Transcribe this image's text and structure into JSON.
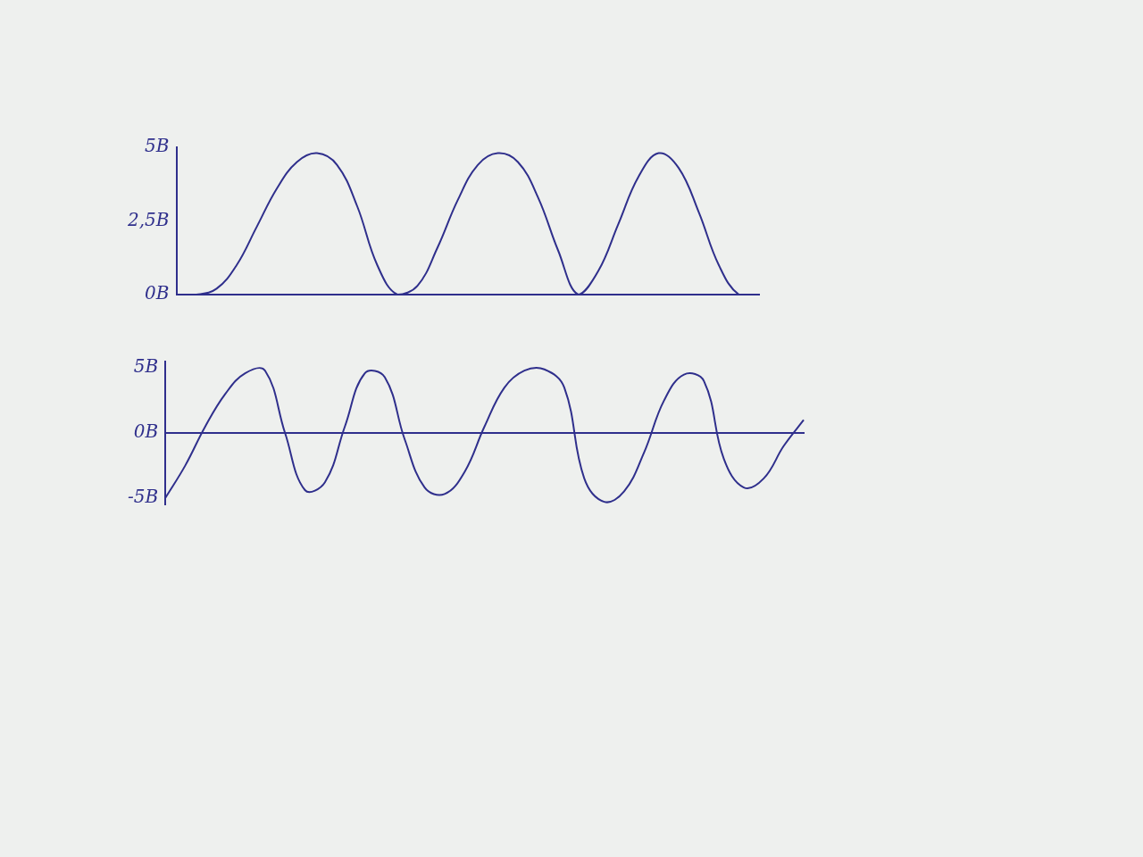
{
  "chart_data": [
    {
      "type": "line",
      "color": "#2f2f8c",
      "grid": false,
      "tick_labels": "y",
      "categories": [
        null,
        null,
        null,
        null,
        null,
        null,
        null,
        null,
        null,
        null,
        null,
        null,
        null,
        null,
        null,
        null,
        null,
        null,
        null,
        null,
        null,
        null,
        null,
        null,
        null,
        null,
        null,
        null,
        null,
        null
      ],
      "values": [
        0,
        0,
        0.2,
        1.0,
        2.3,
        3.6,
        4.5,
        4.8,
        4.4,
        3.0,
        1.0,
        0,
        0.3,
        1.6,
        3.2,
        4.4,
        4.8,
        4.5,
        3.3,
        1.5,
        0,
        0.8,
        2.4,
        4.0,
        4.8,
        4.3,
        2.8,
        1.0,
        0,
        0
      ],
      "ylim": [
        0,
        5
      ],
      "yticks": [
        {
          "value": 0,
          "label": "0В"
        },
        {
          "value": 2.5,
          "label": "2,5В"
        },
        {
          "value": 5,
          "label": "5В"
        }
      ]
    },
    {
      "type": "line",
      "color": "#2f2f8c",
      "grid": false,
      "tick_labels": "y",
      "categories": [
        null,
        null,
        null,
        null,
        null,
        null,
        null,
        null,
        null,
        null,
        null,
        null,
        null,
        null,
        null,
        null,
        null,
        null,
        null,
        null,
        null,
        null,
        null,
        null,
        null,
        null,
        null,
        null,
        null,
        null,
        null,
        null,
        null
      ],
      "values": [
        -5,
        -2.5,
        0.5,
        3,
        4.6,
        4.8,
        0,
        -4.4,
        -3.8,
        0.5,
        4.6,
        4.3,
        -0.5,
        -4.2,
        -4.7,
        -3.0,
        0.5,
        3.5,
        4.8,
        4.9,
        3.5,
        -3.5,
        -5.3,
        -4.5,
        -1.5,
        2.5,
        4.5,
        4.0,
        -2.0,
        -4.2,
        -3.5,
        -1.0,
        1.0
      ],
      "ylim": [
        -5.5,
        5.5
      ],
      "yticks": [
        {
          "value": -5,
          "label": "-5В"
        },
        {
          "value": 0,
          "label": "0В"
        },
        {
          "value": 5,
          "label": "5В"
        }
      ]
    }
  ]
}
